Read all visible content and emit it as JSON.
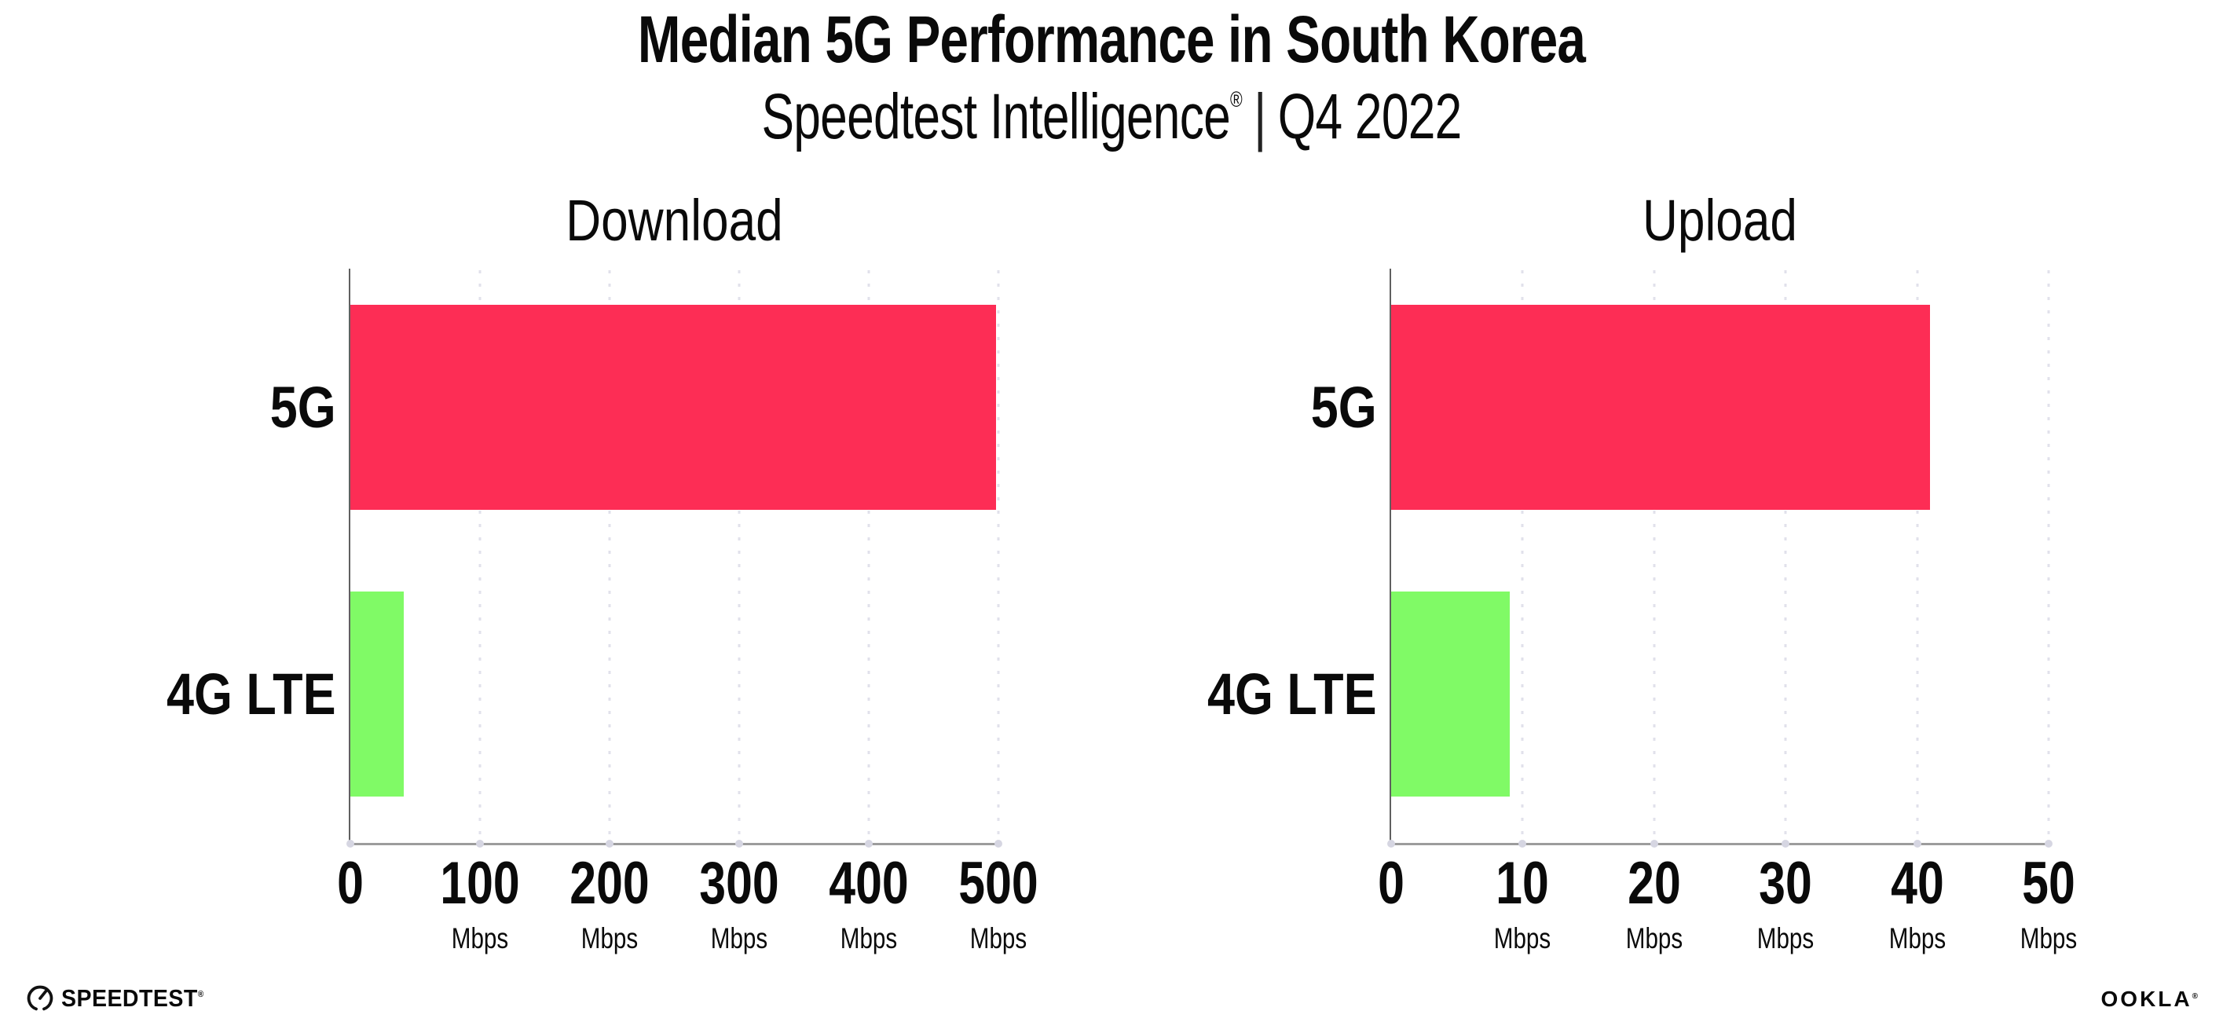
{
  "header": {
    "title": "Median 5G Performance in South Korea",
    "subtitle_brand": "Speedtest Intelligence",
    "subtitle_registered": "®",
    "subtitle_divider": "|",
    "subtitle_period": "Q4 2022"
  },
  "chart_data": [
    {
      "type": "bar",
      "orientation": "horizontal",
      "title": "Download",
      "categories": [
        "5G",
        "4G LTE"
      ],
      "values": [
        498,
        41
      ],
      "value_unit": "Mbps",
      "xlim": [
        0,
        500
      ],
      "xticks": [
        0,
        100,
        200,
        300,
        400,
        500
      ],
      "xtick_unit": "Mbps",
      "xtick_unit_on_zero": false,
      "bar_colors": [
        "#FD2D55",
        "#80FA66"
      ],
      "grid": "dotted vertical gridlines at each tick",
      "legend": "none"
    },
    {
      "type": "bar",
      "orientation": "horizontal",
      "title": "Upload",
      "categories": [
        "5G",
        "4G LTE"
      ],
      "values": [
        41,
        9
      ],
      "value_unit": "Mbps",
      "xlim": [
        0,
        50
      ],
      "xticks": [
        0,
        10,
        20,
        30,
        40,
        50
      ],
      "xtick_unit": "Mbps",
      "xtick_unit_on_zero": false,
      "bar_colors": [
        "#FD2D55",
        "#80FA66"
      ],
      "grid": "dotted vertical gridlines at each tick",
      "legend": "none"
    }
  ],
  "footer": {
    "speedtest_logo": "SPEEDTEST",
    "speedtest_registered": "®",
    "ookla_logo": "OOKLA",
    "ookla_registered": "®"
  },
  "colors": {
    "bar_5g": "#FD2D55",
    "bar_4g_lte": "#80FA66",
    "background": "#FFFFFF",
    "text": "#0A0A0A",
    "x_axis_line": "#9C9C9C",
    "y_axis_line": "#606060",
    "gridline_dots": "#E1E1EB",
    "axis_tick_dots": "#D6D6E2"
  }
}
